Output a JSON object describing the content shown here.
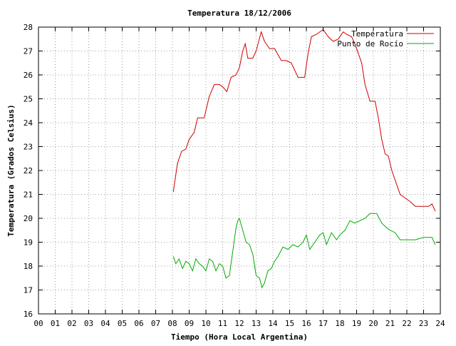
{
  "chart_data": {
    "type": "line",
    "title": "Temperatura 18/12/2006",
    "xlabel": "Tiempo (Hora Local Argentina)",
    "ylabel": "Temperatura (Grados Celsius)",
    "xlim": [
      0,
      24
    ],
    "ylim": [
      16,
      28
    ],
    "x_tick_labels": [
      "00",
      "01",
      "02",
      "03",
      "04",
      "05",
      "06",
      "07",
      "08",
      "09",
      "10",
      "11",
      "12",
      "13",
      "14",
      "15",
      "16",
      "17",
      "18",
      "19",
      "20",
      "21",
      "22",
      "23",
      "24"
    ],
    "y_tick_labels": [
      "16",
      "17",
      "18",
      "19",
      "20",
      "21",
      "22",
      "23",
      "24",
      "25",
      "26",
      "27",
      "28"
    ],
    "grid": true,
    "legend_position": "top-right",
    "series": [
      {
        "name": "Temperatura",
        "color": "#cc0000",
        "x": [
          8.05,
          8.3,
          8.55,
          8.8,
          9.0,
          9.3,
          9.5,
          9.7,
          9.9,
          10.2,
          10.5,
          10.8,
          11.0,
          11.25,
          11.5,
          11.8,
          12.0,
          12.2,
          12.35,
          12.5,
          12.8,
          13.0,
          13.3,
          13.5,
          13.8,
          14.1,
          14.5,
          14.8,
          15.1,
          15.5,
          15.9,
          16.1,
          16.3,
          16.6,
          17.0,
          17.3,
          17.6,
          17.9,
          18.2,
          18.4,
          18.7,
          18.9,
          19.1,
          19.3,
          19.5,
          19.8,
          20.1,
          20.3,
          20.5,
          20.7,
          20.9,
          21.1,
          21.4,
          21.6,
          21.8,
          22.2,
          22.5,
          22.8,
          23.1,
          23.3,
          23.5,
          23.7
        ],
        "y": [
          21.1,
          22.3,
          22.8,
          22.9,
          23.3,
          23.6,
          24.2,
          24.2,
          24.2,
          25.1,
          25.6,
          25.6,
          25.5,
          25.3,
          25.9,
          26.0,
          26.3,
          27.0,
          27.3,
          26.7,
          26.7,
          27.0,
          27.8,
          27.4,
          27.1,
          27.1,
          26.6,
          26.6,
          26.5,
          25.9,
          25.9,
          26.9,
          27.6,
          27.7,
          27.9,
          27.6,
          27.4,
          27.5,
          27.8,
          27.7,
          27.6,
          27.3,
          26.9,
          26.5,
          25.6,
          24.9,
          24.9,
          24.2,
          23.3,
          22.7,
          22.6,
          22.0,
          21.4,
          21.0,
          20.9,
          20.7,
          20.5,
          20.5,
          20.5,
          20.5,
          20.6,
          20.3
        ]
      },
      {
        "name": "Punto de Rocío",
        "color": "#00aa00",
        "x": [
          8.05,
          8.2,
          8.4,
          8.6,
          8.8,
          9.0,
          9.2,
          9.4,
          9.6,
          9.8,
          10.0,
          10.2,
          10.4,
          10.6,
          10.8,
          11.0,
          11.2,
          11.4,
          11.6,
          11.8,
          11.9,
          12.0,
          12.2,
          12.4,
          12.6,
          12.8,
          13.0,
          13.2,
          13.35,
          13.5,
          13.7,
          13.9,
          14.1,
          14.3,
          14.6,
          14.9,
          15.2,
          15.5,
          15.8,
          16.0,
          16.2,
          16.5,
          16.8,
          17.0,
          17.2,
          17.5,
          17.8,
          18.0,
          18.3,
          18.6,
          18.9,
          19.2,
          19.5,
          19.8,
          20.0,
          20.2,
          20.5,
          20.8,
          21.0,
          21.3,
          21.6,
          22.0,
          22.5,
          23.0,
          23.5,
          23.7
        ],
        "y": [
          18.4,
          18.1,
          18.3,
          17.9,
          18.2,
          18.1,
          17.8,
          18.3,
          18.1,
          18.0,
          17.8,
          18.3,
          18.2,
          17.8,
          18.1,
          18.0,
          17.5,
          17.6,
          18.6,
          19.6,
          19.9,
          20.0,
          19.5,
          19.0,
          18.9,
          18.5,
          17.6,
          17.5,
          17.1,
          17.3,
          17.8,
          17.9,
          18.2,
          18.4,
          18.8,
          18.7,
          18.9,
          18.8,
          19.0,
          19.3,
          18.7,
          19.0,
          19.3,
          19.4,
          18.9,
          19.4,
          19.1,
          19.3,
          19.5,
          19.9,
          19.8,
          19.9,
          20.0,
          20.2,
          20.2,
          20.2,
          19.8,
          19.6,
          19.5,
          19.4,
          19.1,
          19.1,
          19.1,
          19.2,
          19.2,
          18.9
        ]
      }
    ]
  }
}
